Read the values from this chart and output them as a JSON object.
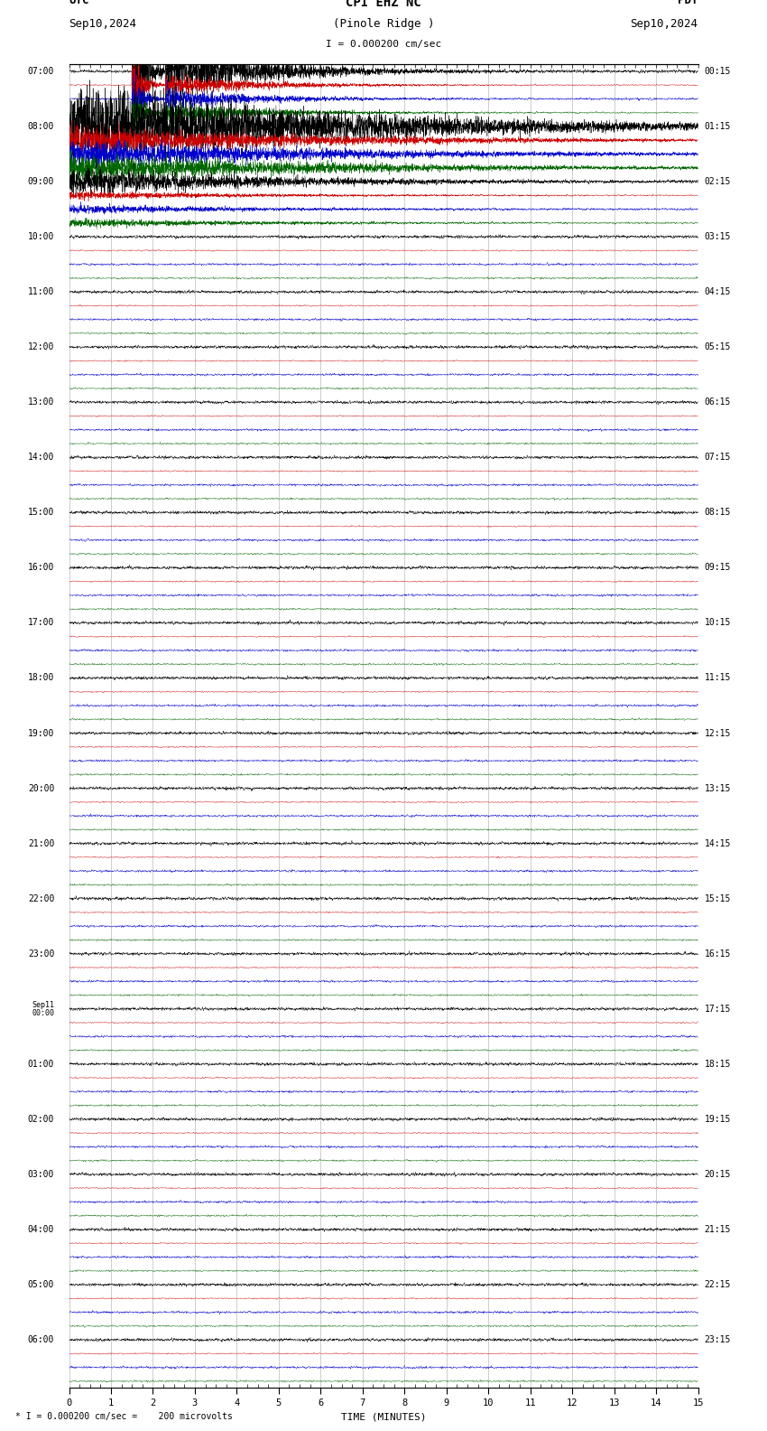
{
  "title_line1": "CPI EHZ NC",
  "title_line2": "(Pinole Ridge )",
  "scale_text": "I = 0.000200 cm/sec",
  "utc_label": "UTC",
  "utc_date": "Sep10,2024",
  "pdt_label": "PDT",
  "pdt_date": "Sep10,2024",
  "xlabel": "TIME (MINUTES)",
  "footer_text": "* I = 0.000200 cm/sec =    200 microvolts",
  "xmin": 0,
  "xmax": 15,
  "background_color": "#ffffff",
  "trace_colors": [
    "#000000",
    "#cc0000",
    "#0000cc",
    "#006600"
  ],
  "grid_color": "#aaaaaa",
  "text_color": "#000000",
  "fig_width": 8.5,
  "fig_height": 15.84,
  "rows_per_group": 4,
  "num_groups": 24,
  "utc_hours": [
    "07:00",
    "08:00",
    "09:00",
    "10:00",
    "11:00",
    "12:00",
    "13:00",
    "14:00",
    "15:00",
    "16:00",
    "17:00",
    "18:00",
    "19:00",
    "20:00",
    "21:00",
    "22:00",
    "23:00",
    "Sep11\n00:00",
    "01:00",
    "02:00",
    "03:00",
    "04:00",
    "05:00",
    "06:00"
  ],
  "pdt_hours": [
    "00:15",
    "01:15",
    "02:15",
    "03:15",
    "04:15",
    "05:15",
    "06:15",
    "07:15",
    "08:15",
    "09:15",
    "10:15",
    "11:15",
    "12:15",
    "13:15",
    "14:15",
    "15:15",
    "16:15",
    "17:15",
    "18:15",
    "19:15",
    "20:15",
    "21:15",
    "22:15",
    "23:15"
  ]
}
